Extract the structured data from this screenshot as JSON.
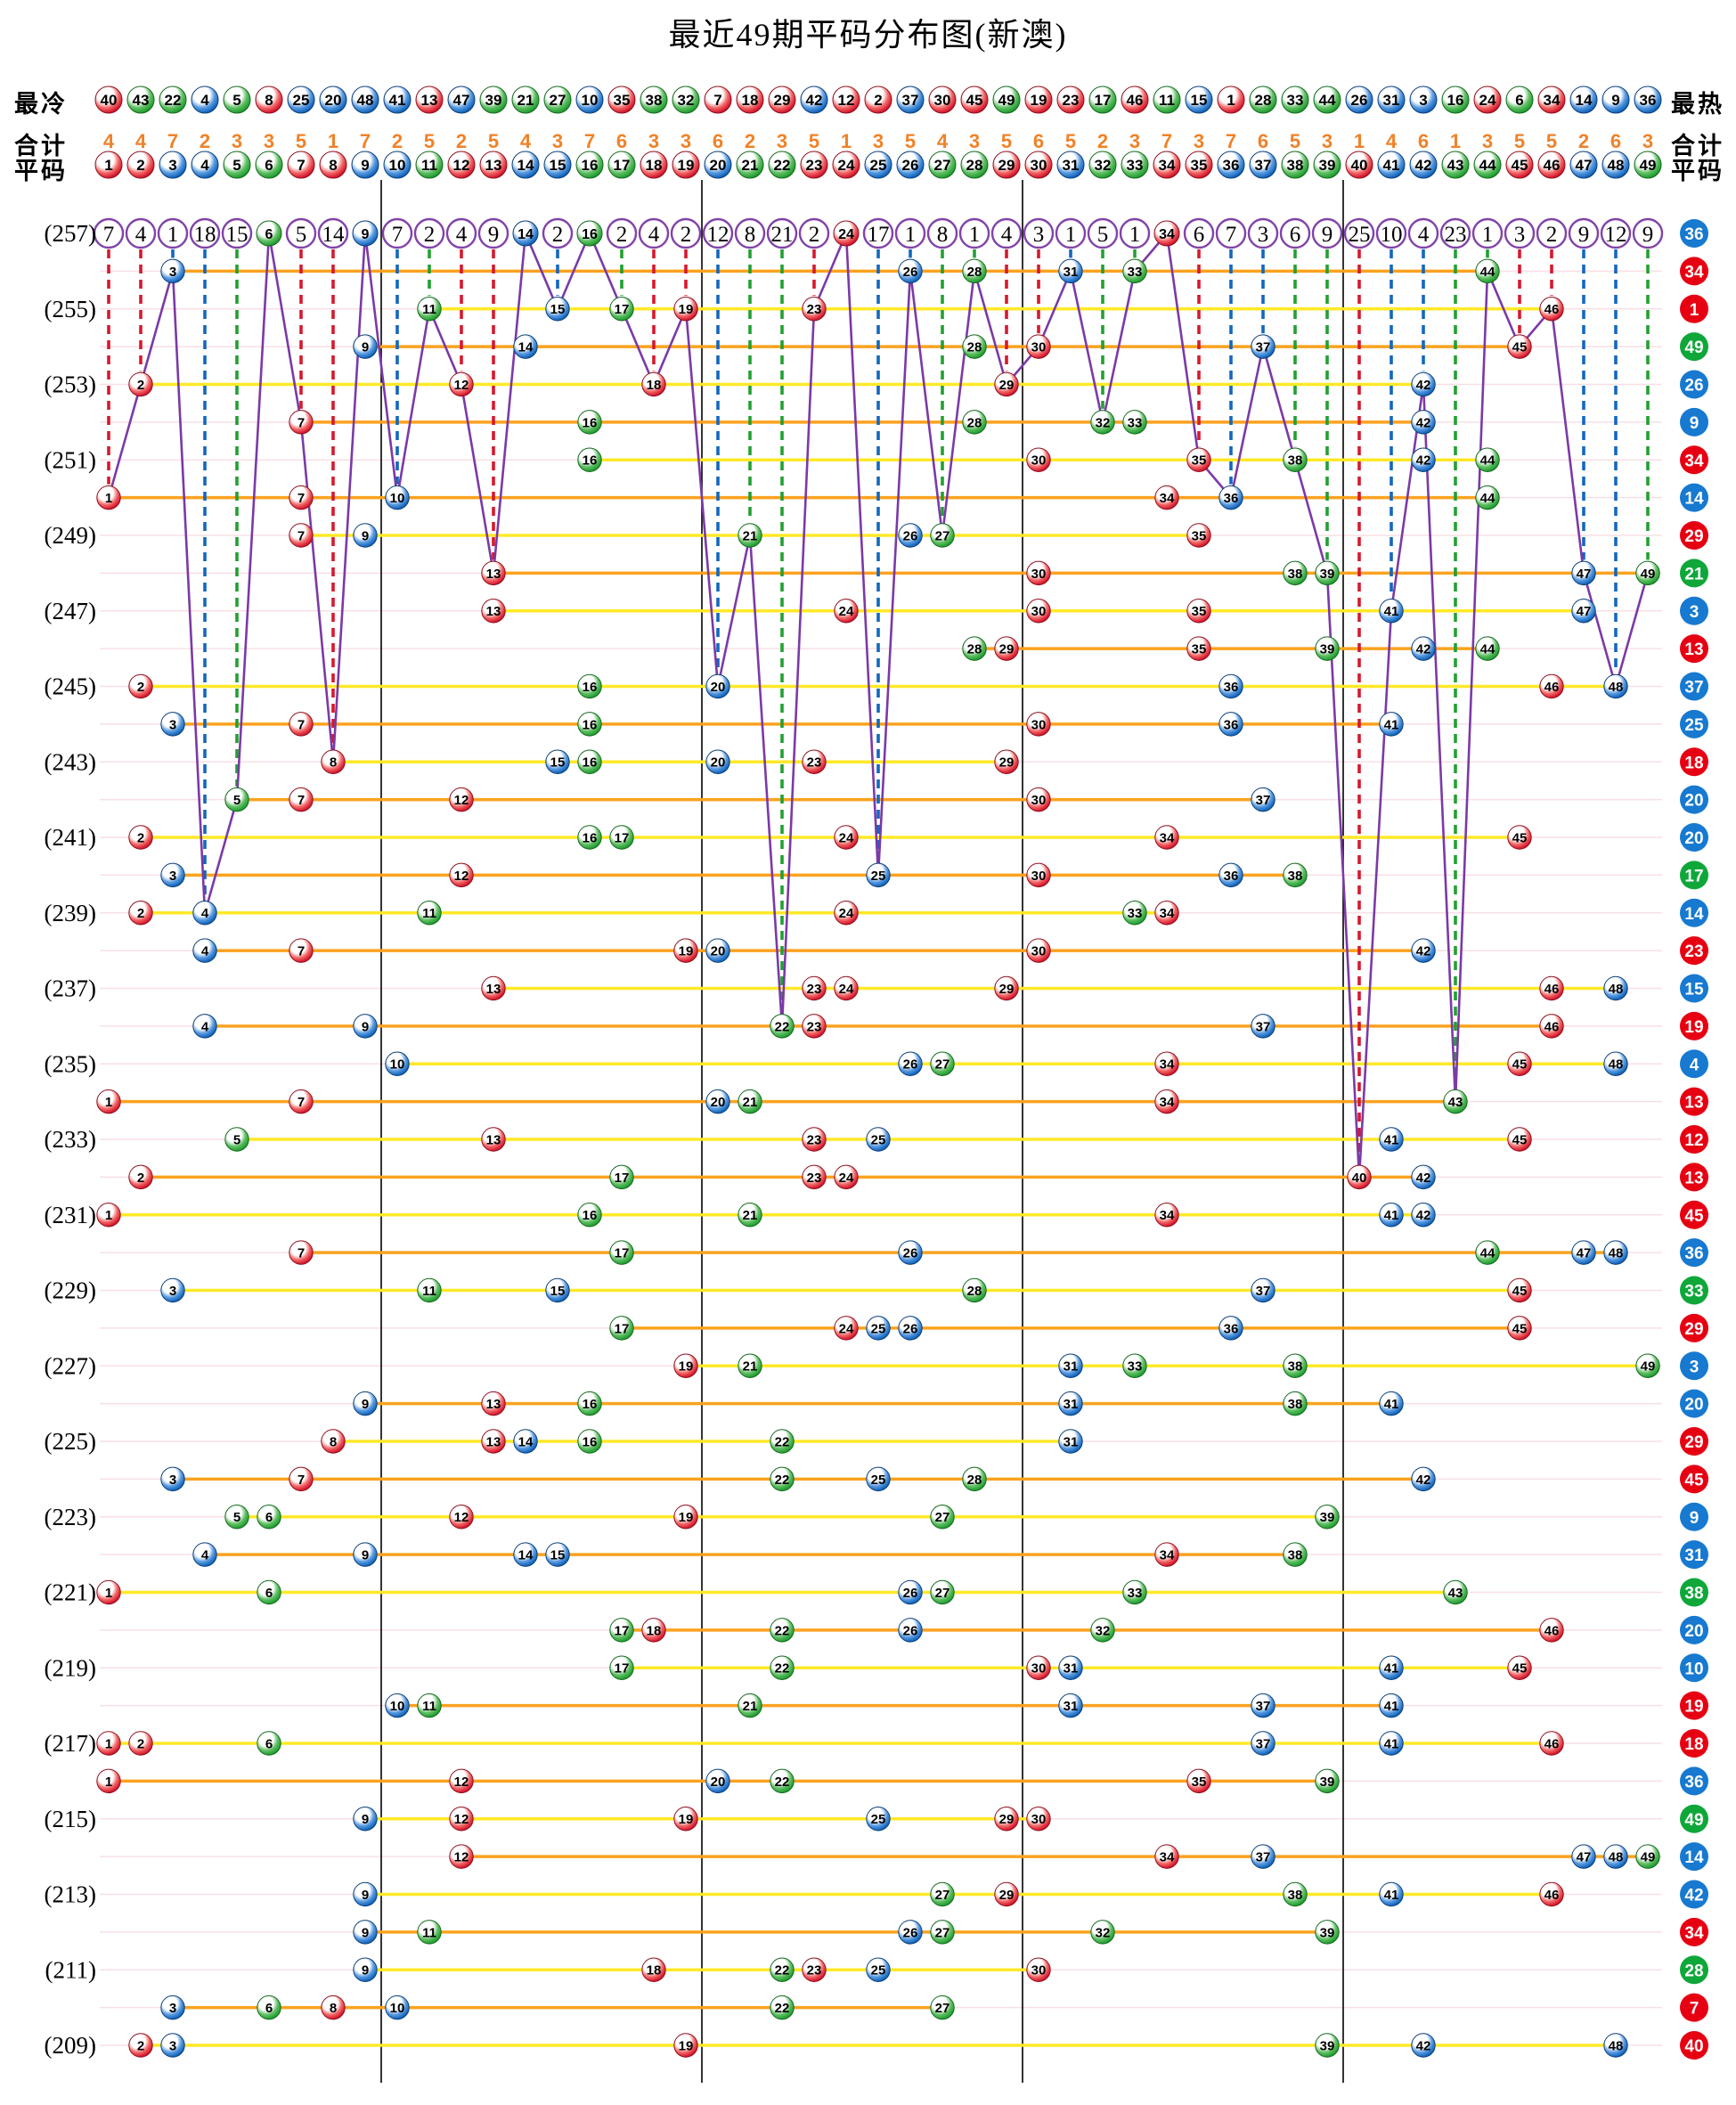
{
  "title": "最近49期平码分布图(新澳)",
  "header": {
    "cold_label": "最冷",
    "hot_label": "最热",
    "total_label_left": "合计",
    "total_label_right": "合计",
    "ping_label_left": "平码",
    "ping_label_right": "平码"
  },
  "chart_data": {
    "type": "scatter",
    "title": "最近49期平码分布图(新澳)",
    "x_axis": {
      "label": "平码",
      "min": 1,
      "max": 49
    },
    "y_axis": {
      "label": "期号",
      "top_period": 257,
      "bottom_period": 209,
      "row_label_parity": "odd"
    },
    "cold_order": [
      40,
      43,
      22,
      4,
      5,
      8,
      25,
      20,
      48,
      41,
      13,
      47,
      39,
      21,
      27,
      10,
      35,
      38,
      32,
      7,
      18,
      29,
      42,
      12,
      2,
      37,
      30,
      45,
      49,
      19,
      23,
      17,
      46,
      11,
      15,
      1,
      28,
      33,
      44,
      26,
      31,
      3,
      16,
      24,
      6,
      34,
      14,
      9,
      36
    ],
    "totals": [
      4,
      4,
      7,
      2,
      3,
      3,
      5,
      1,
      7,
      2,
      5,
      2,
      5,
      4,
      3,
      7,
      6,
      3,
      3,
      6,
      2,
      3,
      5,
      1,
      3,
      5,
      4,
      3,
      5,
      6,
      5,
      2,
      3,
      7,
      3,
      7,
      6,
      5,
      3,
      1,
      4,
      6,
      1,
      3,
      5,
      5,
      2,
      6,
      3
    ],
    "miss_counts": [
      7,
      4,
      1,
      18,
      15,
      0,
      5,
      14,
      0,
      7,
      2,
      4,
      9,
      0,
      2,
      0,
      2,
      4,
      2,
      12,
      8,
      21,
      2,
      0,
      17,
      1,
      8,
      1,
      4,
      3,
      1,
      5,
      1,
      0,
      6,
      7,
      3,
      6,
      9,
      25,
      10,
      4,
      23,
      1,
      3,
      2,
      9,
      12,
      9
    ],
    "periods": [
      {
        "period": 257,
        "balls": [
          6,
          9,
          14,
          16,
          24,
          34
        ],
        "special": 36
      },
      {
        "period": 256,
        "balls": [
          3,
          26,
          28,
          31,
          33,
          44
        ],
        "special": 34
      },
      {
        "period": 255,
        "balls": [
          11,
          15,
          17,
          19,
          23,
          46
        ],
        "special": 1
      },
      {
        "period": 254,
        "balls": [
          9,
          14,
          28,
          30,
          37,
          45
        ],
        "special": 49
      },
      {
        "period": 253,
        "balls": [
          2,
          12,
          18,
          29,
          42
        ],
        "special": 26
      },
      {
        "period": 252,
        "balls": [
          7,
          16,
          28,
          32,
          33,
          42
        ],
        "special": 9
      },
      {
        "period": 251,
        "balls": [
          16,
          30,
          35,
          38,
          42,
          44
        ],
        "special": 34
      },
      {
        "period": 250,
        "balls": [
          1,
          7,
          10,
          34,
          36,
          44
        ],
        "special": 14
      },
      {
        "period": 249,
        "balls": [
          7,
          9,
          21,
          26,
          27,
          35
        ],
        "special": 29
      },
      {
        "period": 248,
        "balls": [
          13,
          30,
          38,
          39,
          47,
          49
        ],
        "special": 21
      },
      {
        "period": 247,
        "balls": [
          13,
          24,
          30,
          35,
          41,
          47
        ],
        "special": 3
      },
      {
        "period": 246,
        "balls": [
          28,
          29,
          35,
          39,
          42,
          44
        ],
        "special": 13
      },
      {
        "period": 245,
        "balls": [
          2,
          16,
          20,
          36,
          46,
          48
        ],
        "special": 37
      },
      {
        "period": 244,
        "balls": [
          3,
          7,
          16,
          30,
          36,
          41
        ],
        "special": 25
      },
      {
        "period": 243,
        "balls": [
          8,
          15,
          16,
          20,
          23,
          29
        ],
        "special": 18
      },
      {
        "period": 242,
        "balls": [
          5,
          7,
          12,
          30,
          37
        ],
        "special": 20
      },
      {
        "period": 241,
        "balls": [
          2,
          16,
          17,
          24,
          34,
          45
        ],
        "special": 20
      },
      {
        "period": 240,
        "balls": [
          3,
          12,
          25,
          30,
          36,
          38
        ],
        "special": 17
      },
      {
        "period": 239,
        "balls": [
          2,
          4,
          11,
          24,
          33,
          34
        ],
        "special": 14
      },
      {
        "period": 238,
        "balls": [
          4,
          7,
          19,
          20,
          30,
          42
        ],
        "special": 23
      },
      {
        "period": 237,
        "balls": [
          13,
          23,
          24,
          29,
          46,
          48
        ],
        "special": 15
      },
      {
        "period": 236,
        "balls": [
          4,
          9,
          22,
          23,
          37,
          46
        ],
        "special": 19
      },
      {
        "period": 235,
        "balls": [
          10,
          26,
          27,
          34,
          45,
          48
        ],
        "special": 4
      },
      {
        "period": 234,
        "balls": [
          1,
          7,
          20,
          21,
          34,
          43
        ],
        "special": 13
      },
      {
        "period": 233,
        "balls": [
          5,
          13,
          23,
          25,
          41,
          45
        ],
        "special": 12
      },
      {
        "period": 232,
        "balls": [
          2,
          17,
          23,
          24,
          40,
          42
        ],
        "special": 13
      },
      {
        "period": 231,
        "balls": [
          1,
          16,
          21,
          34,
          41,
          42
        ],
        "special": 45
      },
      {
        "period": 230,
        "balls": [
          7,
          17,
          26,
          44,
          47,
          48
        ],
        "special": 36
      },
      {
        "period": 229,
        "balls": [
          3,
          11,
          15,
          28,
          37,
          45
        ],
        "special": 33
      },
      {
        "period": 228,
        "balls": [
          17,
          24,
          25,
          26,
          36,
          45
        ],
        "special": 29
      },
      {
        "period": 227,
        "balls": [
          19,
          21,
          31,
          33,
          38,
          49
        ],
        "special": 3
      },
      {
        "period": 226,
        "balls": [
          9,
          13,
          16,
          31,
          38,
          41
        ],
        "special": 20
      },
      {
        "period": 225,
        "balls": [
          8,
          13,
          14,
          16,
          22,
          31
        ],
        "special": 29
      },
      {
        "period": 224,
        "balls": [
          3,
          7,
          22,
          25,
          28,
          42
        ],
        "special": 45
      },
      {
        "period": 223,
        "balls": [
          5,
          6,
          12,
          19,
          27,
          39
        ],
        "special": 9
      },
      {
        "period": 222,
        "balls": [
          4,
          9,
          14,
          15,
          34,
          38
        ],
        "special": 31
      },
      {
        "period": 221,
        "balls": [
          1,
          6,
          26,
          27,
          33,
          43
        ],
        "special": 38
      },
      {
        "period": 220,
        "balls": [
          17,
          18,
          22,
          26,
          32,
          46
        ],
        "special": 20
      },
      {
        "period": 219,
        "balls": [
          17,
          22,
          30,
          31,
          41,
          45
        ],
        "special": 10
      },
      {
        "period": 218,
        "balls": [
          10,
          11,
          21,
          31,
          37,
          41
        ],
        "special": 19
      },
      {
        "period": 217,
        "balls": [
          1,
          2,
          6,
          37,
          41,
          46
        ],
        "special": 18
      },
      {
        "period": 216,
        "balls": [
          1,
          12,
          20,
          22,
          35,
          39
        ],
        "special": 36
      },
      {
        "period": 215,
        "balls": [
          9,
          12,
          19,
          25,
          29,
          30
        ],
        "special": 49
      },
      {
        "period": 214,
        "balls": [
          12,
          34,
          37,
          47,
          48,
          49
        ],
        "special": 14
      },
      {
        "period": 213,
        "balls": [
          9,
          27,
          29,
          38,
          41,
          46
        ],
        "special": 42
      },
      {
        "period": 212,
        "balls": [
          9,
          11,
          26,
          27,
          32,
          39
        ],
        "special": 34
      },
      {
        "period": 211,
        "balls": [
          9,
          18,
          22,
          23,
          25,
          30
        ],
        "special": 28
      },
      {
        "period": 210,
        "balls": [
          3,
          6,
          8,
          10,
          22,
          27
        ],
        "special": 7
      },
      {
        "period": 209,
        "balls": [
          2,
          3,
          19,
          39,
          42,
          48
        ],
        "special": 40
      }
    ],
    "color_groups": {
      "red": [
        1,
        2,
        7,
        8,
        12,
        13,
        18,
        19,
        23,
        24,
        29,
        30,
        34,
        35,
        40,
        45,
        46
      ],
      "blue": [
        3,
        4,
        9,
        10,
        14,
        15,
        20,
        25,
        26,
        31,
        36,
        37,
        41,
        42,
        47,
        48
      ],
      "green": [
        5,
        6,
        11,
        16,
        17,
        21,
        22,
        27,
        28,
        32,
        33,
        38,
        39,
        43,
        44,
        49
      ]
    },
    "colors": {
      "red": "#D6192E",
      "red_dark": "#8F0F1E",
      "red_light": "#F26A6A",
      "blue": "#1467BE",
      "blue_dark": "#0C3F7A",
      "blue_light": "#5B9BE0",
      "green": "#23A032",
      "green_dark": "#156A1E",
      "green_light": "#63C067",
      "special_red": "#E60012",
      "special_blue": "#1779D0",
      "special_green": "#0FA73A",
      "purple": "#7B3AA6",
      "circle_stroke": "#8242A8",
      "yellow_line": "#FFE928",
      "orange_line": "#FBA21F",
      "row_guide": "#F8DFE4",
      "divider": "#000000",
      "total_text": "#F08228"
    },
    "section_dividers_after": [
      9,
      19,
      29,
      39
    ],
    "legend": {
      "grid": "off",
      "row_line_colors": {
        "odd_period": "yellow",
        "even_period": "orange"
      }
    }
  }
}
